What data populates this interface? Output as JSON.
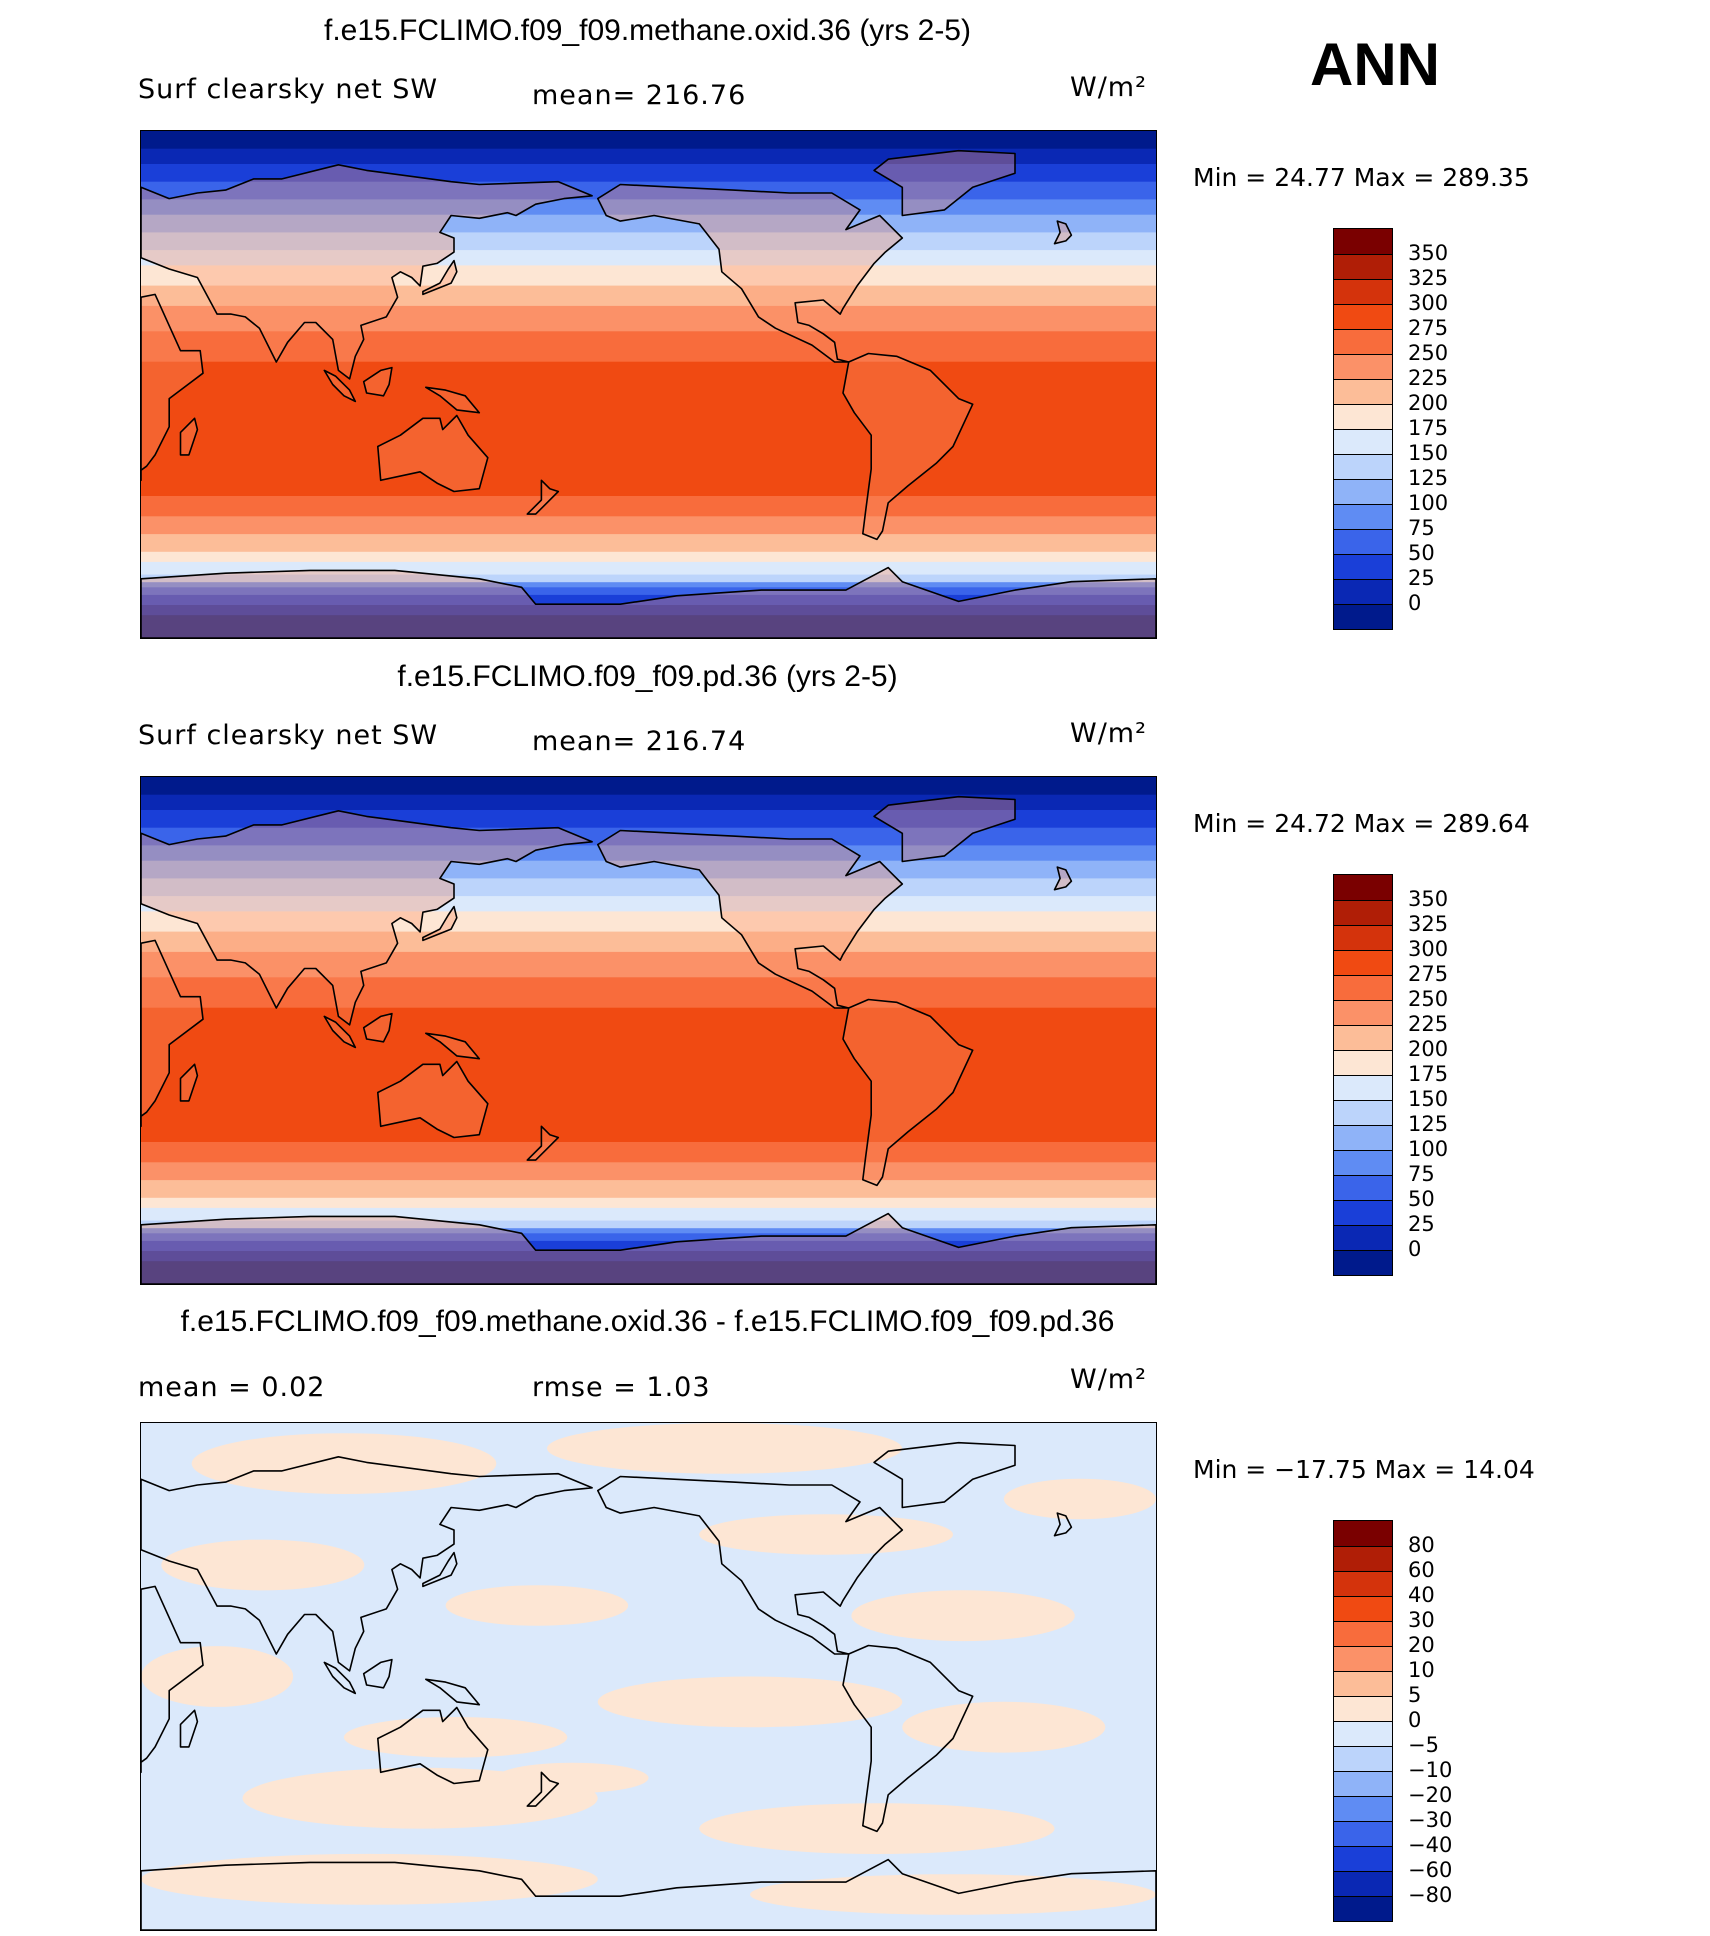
{
  "season": "ANN",
  "panels": [
    {
      "title": "f.e15.FCLIMO.f09_f09.methane.oxid.36 (yrs 2-5)",
      "left_label": "Surf clearsky net SW",
      "center_label": "mean= 216.76",
      "units": "W/m²",
      "minmax": "Min =   24.77 Max = 289.35",
      "field": "absolute"
    },
    {
      "title": "f.e15.FCLIMO.f09_f09.pd.36 (yrs 2-5)",
      "left_label": "Surf clearsky net SW",
      "center_label": "mean= 216.74",
      "units": "W/m²",
      "minmax": "Min =   24.72 Max = 289.64",
      "field": "absolute"
    },
    {
      "title": "f.e15.FCLIMO.f09_f09.methane.oxid.36 - f.e15.FCLIMO.f09_f09.pd.36",
      "left_label": "mean =    0.02",
      "center_label": "rmse =    1.03",
      "units": "W/m²",
      "minmax": "Min = −17.75 Max =  14.04",
      "field": "difference"
    }
  ],
  "colorbar_abs": {
    "labels": [
      "350",
      "325",
      "300",
      "275",
      "250",
      "225",
      "200",
      "175",
      "150",
      "125",
      "100",
      "75",
      "50",
      "25",
      "0"
    ],
    "colors": [
      "#7a0000",
      "#b01e06",
      "#d4330c",
      "#f04a12",
      "#f86c3c",
      "#fb9168",
      "#fcbd98",
      "#fde6d4",
      "#dbe9fb",
      "#bcd4fb",
      "#8fb3f8",
      "#5f8cf3",
      "#3a64ea",
      "#1a3fd8",
      "#0a28b4",
      "#001a8c"
    ]
  },
  "colorbar_diff": {
    "labels": [
      "80",
      "60",
      "40",
      "30",
      "20",
      "10",
      "5",
      "0",
      "−5",
      "−10",
      "−20",
      "−30",
      "−40",
      "−60",
      "−80"
    ],
    "colors": [
      "#7a0000",
      "#b01e06",
      "#d4330c",
      "#f04a12",
      "#f86c3c",
      "#fb9168",
      "#fcbd98",
      "#fde6d4",
      "#dbe9fb",
      "#bcd4fb",
      "#8fb3f8",
      "#5f8cf3",
      "#3a64ea",
      "#1a3fd8",
      "#0a28b4",
      "#001a8c"
    ]
  }
}
